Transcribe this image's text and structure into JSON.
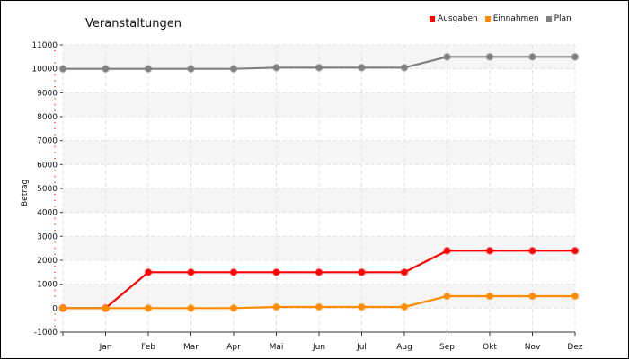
{
  "chart_data": {
    "type": "line",
    "title": "Veranstaltungen",
    "ylabel": "Betrag",
    "xlabel": "",
    "categories": [
      "",
      "Jan",
      "Feb",
      "Mar",
      "Apr",
      "Mai",
      "Jun",
      "Jul",
      "Aug",
      "Sep",
      "Okt",
      "Nov",
      "Dez"
    ],
    "ylim": [
      -1000,
      11000
    ],
    "yticks": [
      -1000,
      0,
      1000,
      2000,
      3000,
      4000,
      5000,
      6000,
      7000,
      8000,
      9000,
      10000,
      11000
    ],
    "grid": true,
    "legend_position": "top-right",
    "series": [
      {
        "name": "Ausgaben",
        "color": "#ff0000",
        "values": [
          0,
          0,
          1500,
          1500,
          1500,
          1500,
          1500,
          1500,
          1500,
          2400,
          2400,
          2400,
          2400
        ]
      },
      {
        "name": "Einnahmen",
        "color": "#ff8c00",
        "values": [
          0,
          0,
          0,
          0,
          0,
          50,
          50,
          50,
          50,
          500,
          500,
          500,
          500
        ]
      },
      {
        "name": "Plan",
        "color": "#808080",
        "values": [
          10000,
          10000,
          10000,
          10000,
          10000,
          10050,
          10050,
          10050,
          10050,
          10500,
          10500,
          10500,
          10500
        ]
      }
    ]
  }
}
